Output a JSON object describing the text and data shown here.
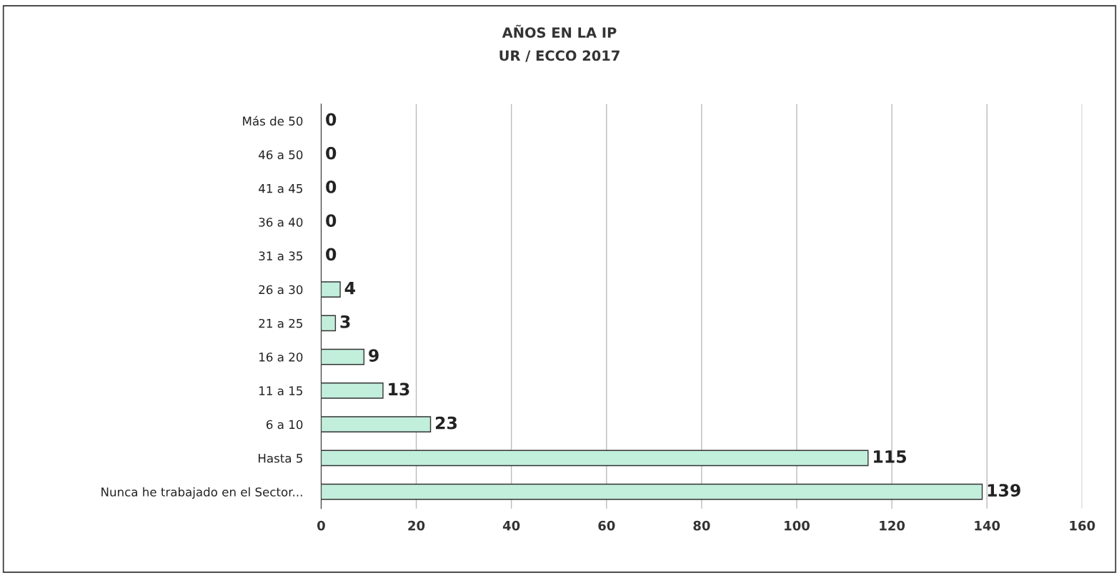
{
  "chart_data": {
    "type": "bar",
    "orientation": "horizontal",
    "title": "AÑOS EN LA IP",
    "subtitle": "UR / ECCO 2017",
    "categories": [
      "Más de 50",
      "46 a 50",
      "41 a 45",
      "36 a 40",
      "31 a 35",
      "26 a 30",
      "21 a 25",
      "16 a 20",
      "11 a 15",
      "6 a 10",
      "Hasta 5",
      "Nunca he trabajado en el Sector..."
    ],
    "values": [
      0,
      0,
      0,
      0,
      0,
      4,
      3,
      9,
      13,
      23,
      115,
      139
    ],
    "color": "#c2eedc",
    "data_labels": true,
    "grid": "x",
    "legend": false,
    "xlim": [
      0,
      160
    ],
    "xticks": [
      0,
      20,
      40,
      60,
      80,
      100,
      120,
      140,
      160
    ]
  }
}
